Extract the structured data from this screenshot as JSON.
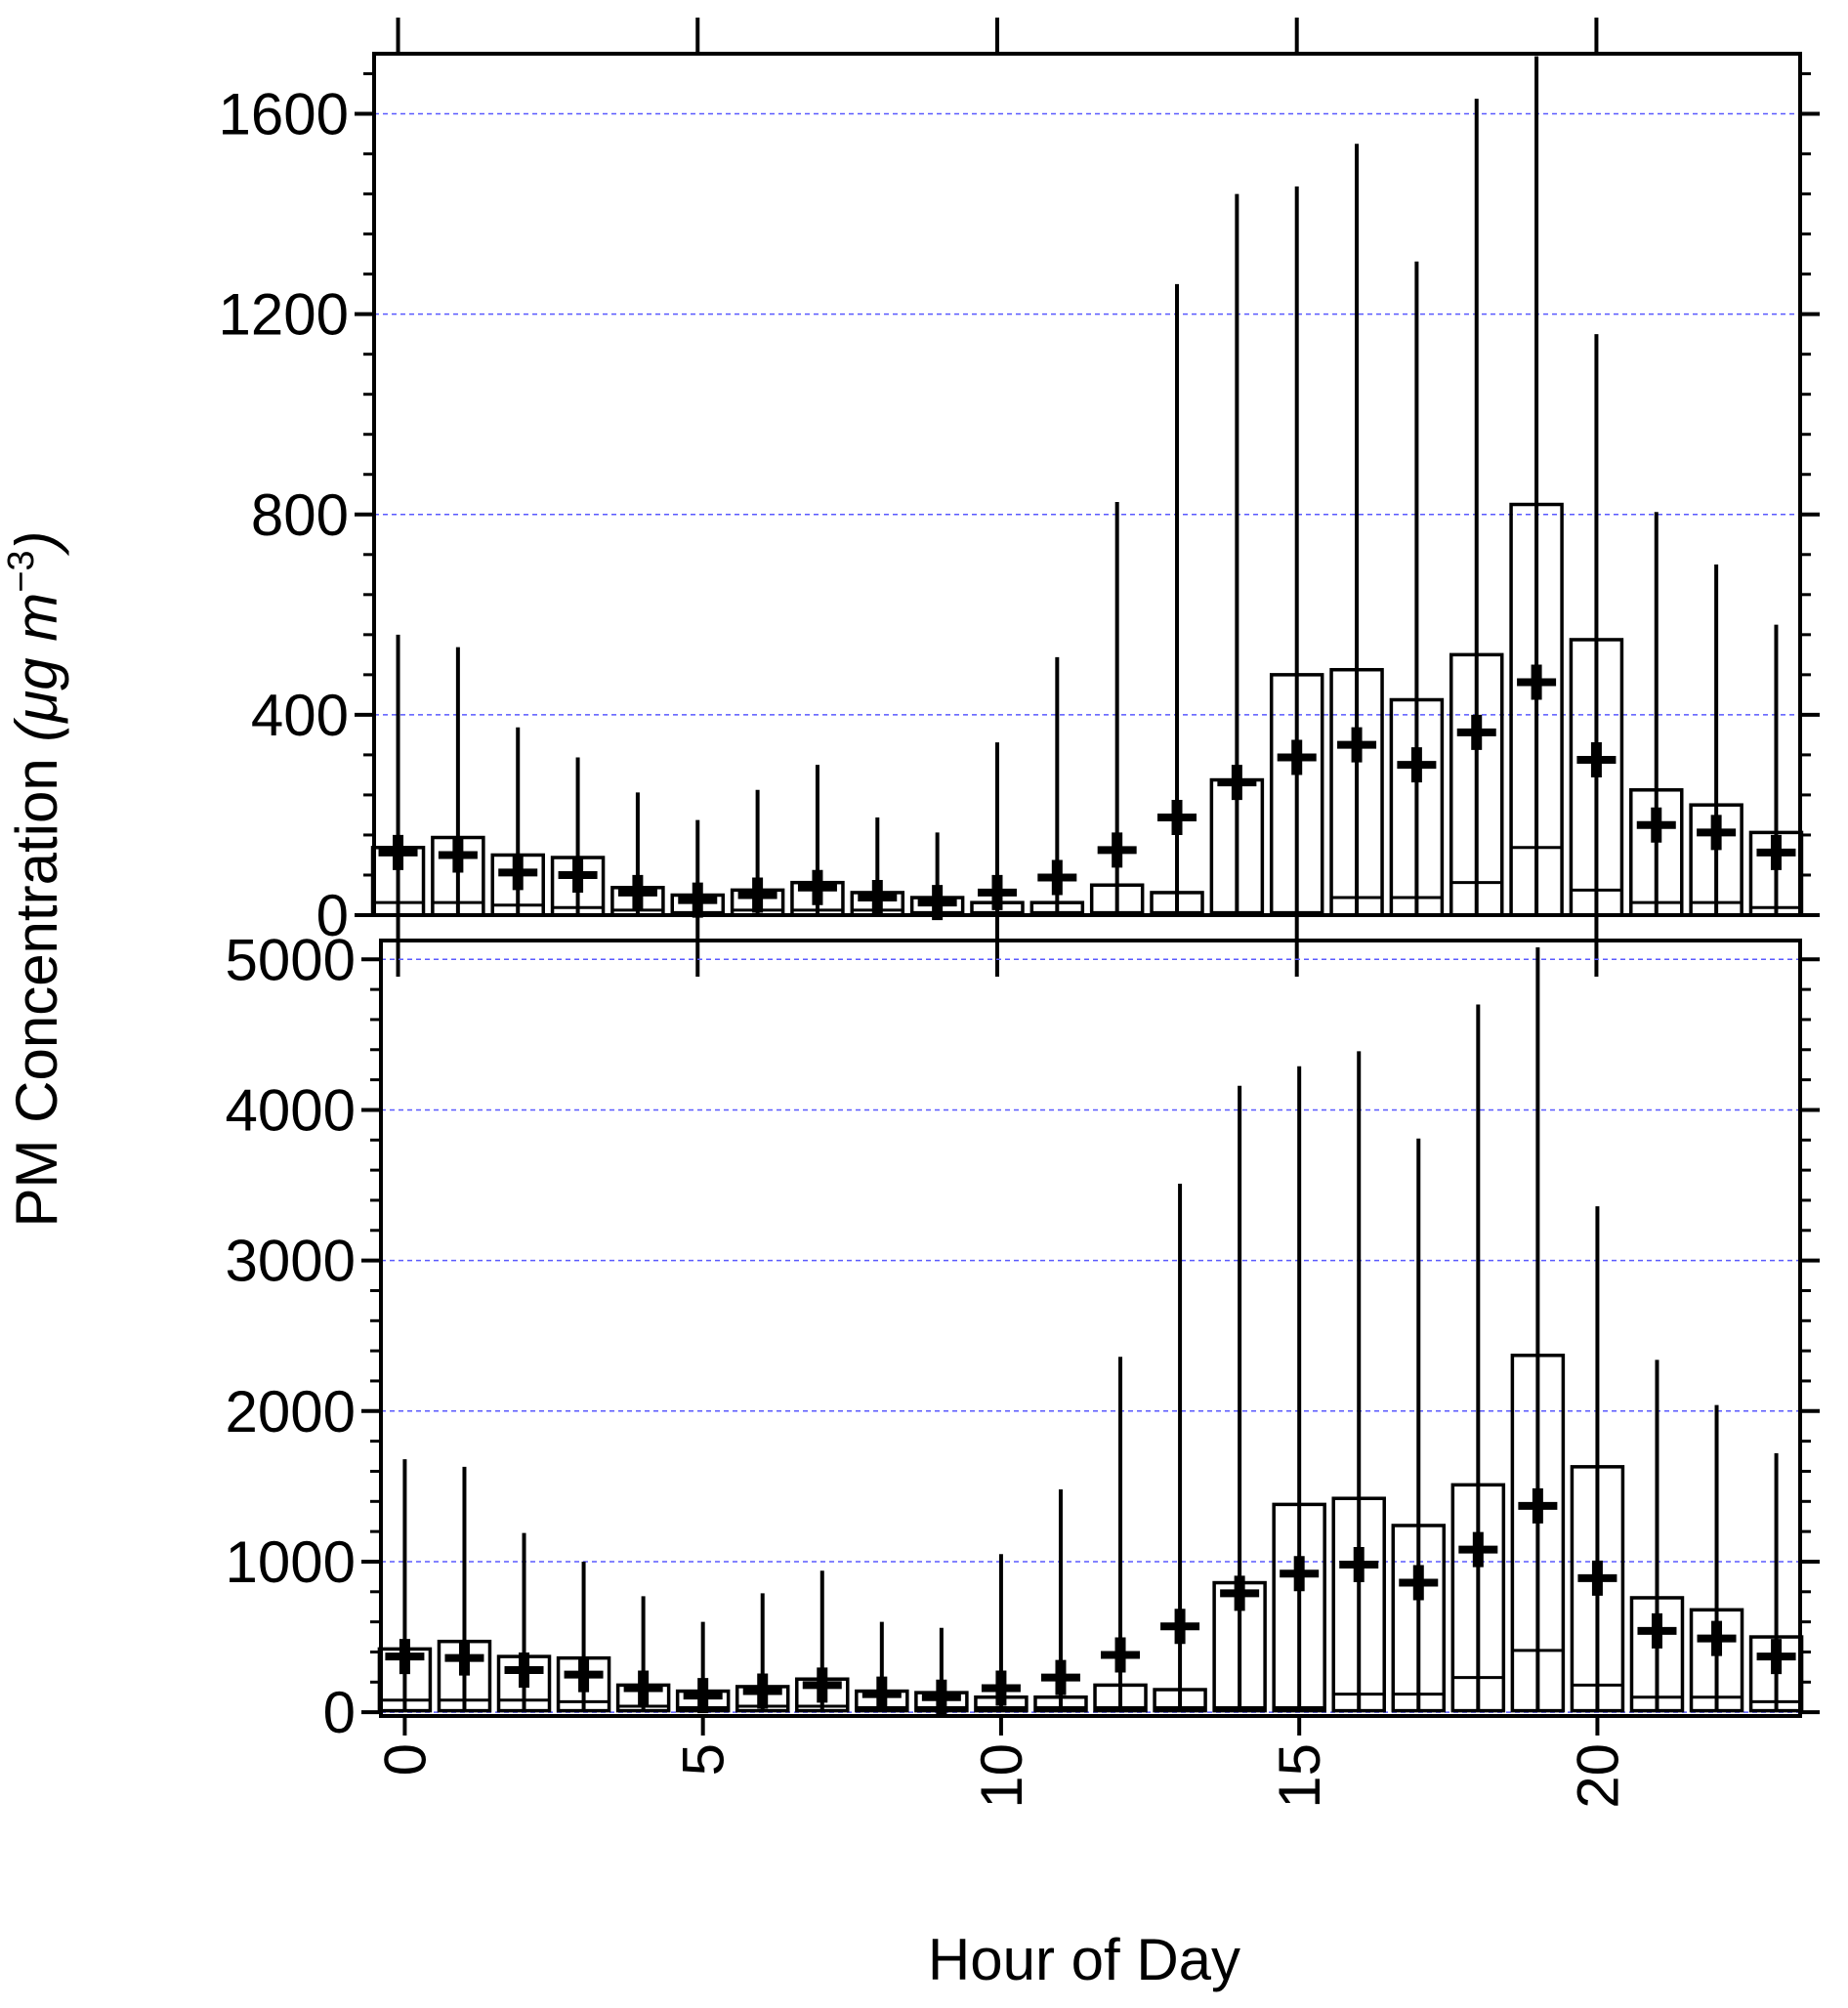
{
  "chart_data": [
    {
      "type": "box",
      "panel": "top",
      "title": "",
      "xlabel": "Hour of Day",
      "ylabel": "PM Concentration (μg m^-3)",
      "ylim": [
        0,
        1720
      ],
      "xlim": [
        -0.4,
        23.4
      ],
      "yticks": [
        0,
        400,
        800,
        1200,
        1600
      ],
      "ytick_labels": [
        "0",
        "400",
        "800",
        "1200",
        "1600"
      ],
      "grid": "horizontal dashed",
      "marks": "whisker = top of range, box = lower-to-upper, line in box = median, cross = mean",
      "boxes": [
        {
          "x": 0,
          "whisker_top": 560,
          "box_low": 0,
          "box_high": 135,
          "median": 25,
          "mean": 125
        },
        {
          "x": 1,
          "whisker_top": 535,
          "box_low": 0,
          "box_high": 155,
          "median": 25,
          "mean": 120
        },
        {
          "x": 2,
          "whisker_top": 375,
          "box_low": 0,
          "box_high": 120,
          "median": 20,
          "mean": 85
        },
        {
          "x": 3,
          "whisker_top": 315,
          "box_low": 0,
          "box_high": 115,
          "median": 15,
          "mean": 80
        },
        {
          "x": 4,
          "whisker_top": 245,
          "box_low": 0,
          "box_high": 55,
          "median": 10,
          "mean": 45
        },
        {
          "x": 5,
          "whisker_top": 190,
          "box_low": 0,
          "box_high": 40,
          "median": 5,
          "mean": 30
        },
        {
          "x": 6,
          "whisker_top": 250,
          "box_low": 0,
          "box_high": 50,
          "median": 10,
          "mean": 40
        },
        {
          "x": 7,
          "whisker_top": 300,
          "box_low": 0,
          "box_high": 65,
          "median": 10,
          "mean": 55
        },
        {
          "x": 8,
          "whisker_top": 195,
          "box_low": 0,
          "box_high": 45,
          "median": 10,
          "mean": 35
        },
        {
          "x": 9,
          "whisker_top": 165,
          "box_low": 0,
          "box_high": 35,
          "median": 5,
          "mean": 25
        },
        {
          "x": 10,
          "whisker_top": 345,
          "box_low": 0,
          "box_high": 25,
          "median": 5,
          "mean": 45
        },
        {
          "x": 11,
          "whisker_top": 515,
          "box_low": 0,
          "box_high": 25,
          "median": 5,
          "mean": 75
        },
        {
          "x": 12,
          "whisker_top": 825,
          "box_low": 0,
          "box_high": 60,
          "median": 5,
          "mean": 130
        },
        {
          "x": 13,
          "whisker_top": 1260,
          "box_low": 0,
          "box_high": 45,
          "median": 5,
          "mean": 195
        },
        {
          "x": 14,
          "whisker_top": 1440,
          "box_low": 0,
          "box_high": 270,
          "median": 5,
          "mean": 265
        },
        {
          "x": 15,
          "whisker_top": 1455,
          "box_low": 0,
          "box_high": 480,
          "median": 5,
          "mean": 315
        },
        {
          "x": 16,
          "whisker_top": 1540,
          "box_low": 0,
          "box_high": 490,
          "median": 35,
          "mean": 340
        },
        {
          "x": 17,
          "whisker_top": 1305,
          "box_low": 0,
          "box_high": 430,
          "median": 35,
          "mean": 300
        },
        {
          "x": 18,
          "whisker_top": 1630,
          "box_low": 0,
          "box_high": 520,
          "median": 65,
          "mean": 365
        },
        {
          "x": 19,
          "whisker_top": 1715,
          "box_low": 0,
          "box_high": 820,
          "median": 135,
          "mean": 465
        },
        {
          "x": 20,
          "whisker_top": 1160,
          "box_low": 0,
          "box_high": 550,
          "median": 50,
          "mean": 310
        },
        {
          "x": 21,
          "whisker_top": 805,
          "box_low": 0,
          "box_high": 250,
          "median": 25,
          "mean": 180
        },
        {
          "x": 22,
          "whisker_top": 700,
          "box_low": 0,
          "box_high": 220,
          "median": 25,
          "mean": 165
        },
        {
          "x": 23,
          "whisker_top": 580,
          "box_low": 0,
          "box_high": 165,
          "median": 15,
          "mean": 125
        }
      ]
    },
    {
      "type": "box",
      "panel": "bottom",
      "title": "",
      "xlabel": "Hour of Day",
      "ylabel": "PM Concentration (μg m^-3)",
      "ylim": [
        -25,
        5125
      ],
      "xlim": [
        -0.4,
        23.4
      ],
      "yticks": [
        0,
        1000,
        2000,
        3000,
        4000,
        5000
      ],
      "ytick_labels": [
        "0",
        "1000",
        "2000",
        "3000",
        "4000",
        "5000"
      ],
      "xticks": [
        0,
        5,
        10,
        15,
        20
      ],
      "xtick_labels": [
        "0",
        "5",
        "10",
        "15",
        "20"
      ],
      "grid": "horizontal dashed",
      "marks": "whisker = top of range, box = lower-to-upper, line in box = median, cross = mean",
      "boxes": [
        {
          "x": 0,
          "whisker_top": 1680,
          "box_low": 10,
          "box_high": 420,
          "median": 80,
          "mean": 370
        },
        {
          "x": 1,
          "whisker_top": 1630,
          "box_low": 10,
          "box_high": 470,
          "median": 80,
          "mean": 360
        },
        {
          "x": 2,
          "whisker_top": 1190,
          "box_low": 10,
          "box_high": 370,
          "median": 80,
          "mean": 280
        },
        {
          "x": 3,
          "whisker_top": 1000,
          "box_low": 10,
          "box_high": 360,
          "median": 70,
          "mean": 250
        },
        {
          "x": 4,
          "whisker_top": 770,
          "box_low": 10,
          "box_high": 180,
          "median": 40,
          "mean": 160
        },
        {
          "x": 5,
          "whisker_top": 600,
          "box_low": 10,
          "box_high": 140,
          "median": 30,
          "mean": 110
        },
        {
          "x": 6,
          "whisker_top": 790,
          "box_low": 10,
          "box_high": 170,
          "median": 40,
          "mean": 140
        },
        {
          "x": 7,
          "whisker_top": 940,
          "box_low": 10,
          "box_high": 220,
          "median": 40,
          "mean": 180
        },
        {
          "x": 8,
          "whisker_top": 600,
          "box_low": 10,
          "box_high": 140,
          "median": 30,
          "mean": 120
        },
        {
          "x": 9,
          "whisker_top": 560,
          "box_low": 10,
          "box_high": 130,
          "median": 30,
          "mean": 100
        },
        {
          "x": 10,
          "whisker_top": 1050,
          "box_low": 10,
          "box_high": 100,
          "median": 30,
          "mean": 160
        },
        {
          "x": 11,
          "whisker_top": 1480,
          "box_low": 10,
          "box_high": 100,
          "median": 30,
          "mean": 230
        },
        {
          "x": 12,
          "whisker_top": 2360,
          "box_low": 10,
          "box_high": 180,
          "median": 30,
          "mean": 380
        },
        {
          "x": 13,
          "whisker_top": 3510,
          "box_low": 10,
          "box_high": 150,
          "median": 30,
          "mean": 570
        },
        {
          "x": 14,
          "whisker_top": 4160,
          "box_low": 10,
          "box_high": 860,
          "median": 30,
          "mean": 790
        },
        {
          "x": 15,
          "whisker_top": 4290,
          "box_low": 10,
          "box_high": 1380,
          "median": 30,
          "mean": 920
        },
        {
          "x": 16,
          "whisker_top": 4390,
          "box_low": 10,
          "box_high": 1420,
          "median": 120,
          "mean": 980
        },
        {
          "x": 17,
          "whisker_top": 3810,
          "box_low": 10,
          "box_high": 1240,
          "median": 120,
          "mean": 860
        },
        {
          "x": 18,
          "whisker_top": 4700,
          "box_low": 10,
          "box_high": 1510,
          "median": 230,
          "mean": 1080
        },
        {
          "x": 19,
          "whisker_top": 5080,
          "box_low": 10,
          "box_high": 2370,
          "median": 410,
          "mean": 1370
        },
        {
          "x": 20,
          "whisker_top": 3360,
          "box_low": 10,
          "box_high": 1630,
          "median": 180,
          "mean": 890
        },
        {
          "x": 21,
          "whisker_top": 2340,
          "box_low": 10,
          "box_high": 760,
          "median": 100,
          "mean": 540
        },
        {
          "x": 22,
          "whisker_top": 2040,
          "box_low": 10,
          "box_high": 680,
          "median": 100,
          "mean": 490
        },
        {
          "x": 23,
          "whisker_top": 1720,
          "box_low": 10,
          "box_high": 500,
          "median": 70,
          "mean": 370
        }
      ]
    }
  ],
  "labels": {
    "y_axis_plain": "PM Concentration ",
    "y_axis_unit_mu": "μg m",
    "y_axis_unit_exp": "−3",
    "y_axis_paren_open": "(",
    "y_axis_paren_close": ")",
    "x_axis": "Hour of Day"
  },
  "colors": {
    "ink": "#000000",
    "grid": "#5a5aff",
    "background": "#ffffff"
  }
}
